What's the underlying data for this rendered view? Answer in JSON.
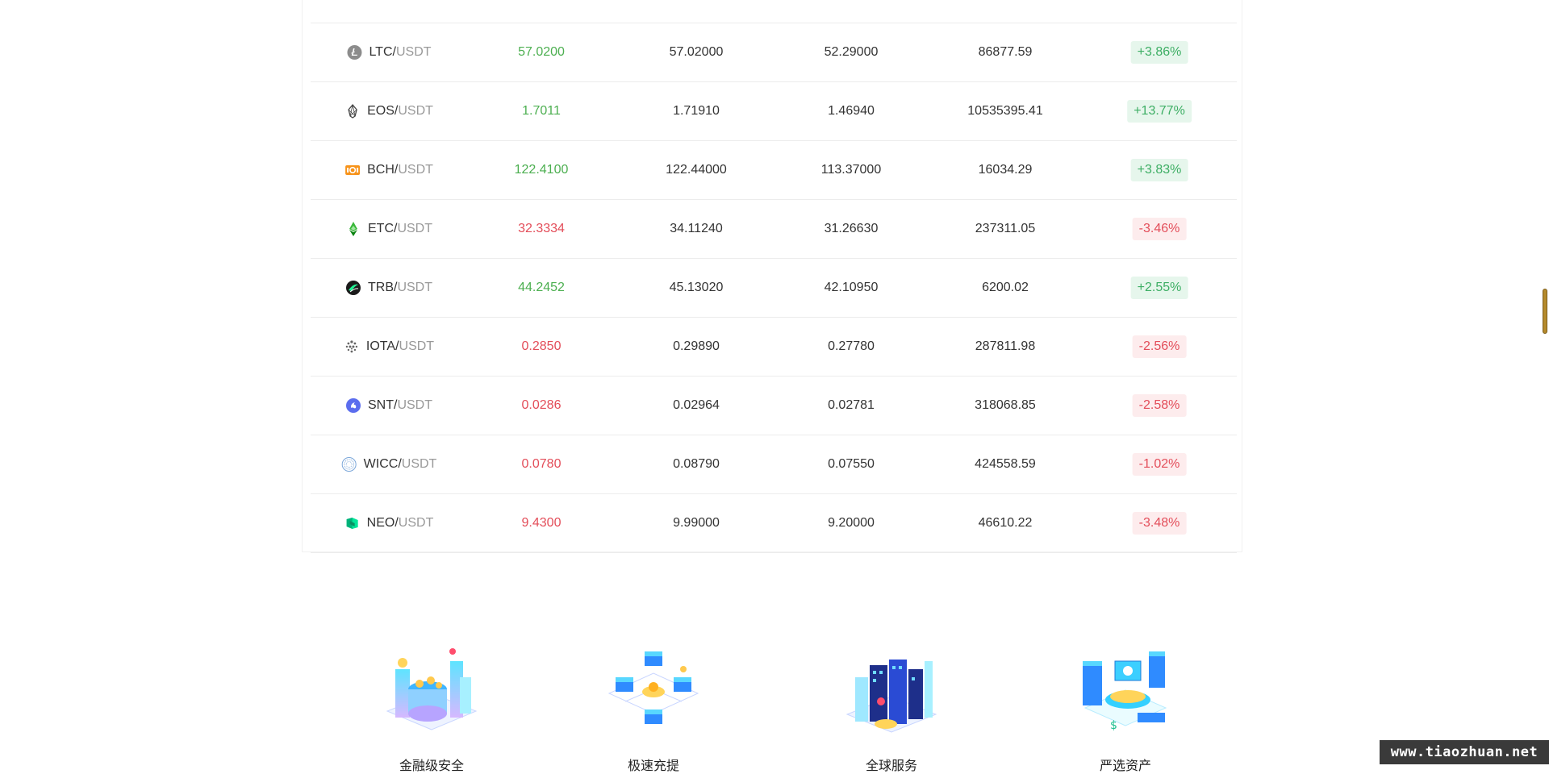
{
  "market": {
    "rows": [
      {
        "base": "LTC",
        "quote": "USDT",
        "icon": "ltc-icon",
        "last": "57.0200",
        "trend": "up",
        "high": "57.02000",
        "low": "52.29000",
        "volume": "86877.59",
        "change": "+3.86%"
      },
      {
        "base": "EOS",
        "quote": "USDT",
        "icon": "eos-icon",
        "last": "1.7011",
        "trend": "up",
        "high": "1.71910",
        "low": "1.46940",
        "volume": "10535395.41",
        "change": "+13.77%"
      },
      {
        "base": "BCH",
        "quote": "USDT",
        "icon": "bch-icon",
        "last": "122.4100",
        "trend": "up",
        "high": "122.44000",
        "low": "113.37000",
        "volume": "16034.29",
        "change": "+3.83%"
      },
      {
        "base": "ETC",
        "quote": "USDT",
        "icon": "etc-icon",
        "last": "32.3334",
        "trend": "down",
        "high": "34.11240",
        "low": "31.26630",
        "volume": "237311.05",
        "change": "-3.46%"
      },
      {
        "base": "TRB",
        "quote": "USDT",
        "icon": "trb-icon",
        "last": "44.2452",
        "trend": "up",
        "high": "45.13020",
        "low": "42.10950",
        "volume": "6200.02",
        "change": "+2.55%"
      },
      {
        "base": "IOTA",
        "quote": "USDT",
        "icon": "iota-icon",
        "last": "0.2850",
        "trend": "down",
        "high": "0.29890",
        "low": "0.27780",
        "volume": "287811.98",
        "change": "-2.56%"
      },
      {
        "base": "SNT",
        "quote": "USDT",
        "icon": "snt-icon",
        "last": "0.0286",
        "trend": "down",
        "high": "0.02964",
        "low": "0.02781",
        "volume": "318068.85",
        "change": "-2.58%"
      },
      {
        "base": "WICC",
        "quote": "USDT",
        "icon": "wicc-icon",
        "last": "0.0780",
        "trend": "down",
        "high": "0.08790",
        "low": "0.07550",
        "volume": "424558.59",
        "change": "-1.02%"
      },
      {
        "base": "NEO",
        "quote": "USDT",
        "icon": "neo-icon",
        "last": "9.4300",
        "trend": "down",
        "high": "9.99000",
        "low": "9.20000",
        "volume": "46610.22",
        "change": "-3.48%"
      }
    ]
  },
  "features": [
    {
      "icon": "security-isometric-icon",
      "label": "金融级安全"
    },
    {
      "icon": "fast-withdrawal-isometric-icon",
      "label": "极速充提"
    },
    {
      "icon": "global-service-isometric-icon",
      "label": "全球服务"
    },
    {
      "icon": "curated-assets-isometric-icon",
      "label": "严选资产"
    }
  ],
  "watermark": "www.tiaozhuan.net",
  "colors": {
    "up": "#4caf50",
    "down": "#e34d59",
    "up_badge_bg": "#e6f6ec",
    "down_badge_bg": "#fdeced"
  }
}
